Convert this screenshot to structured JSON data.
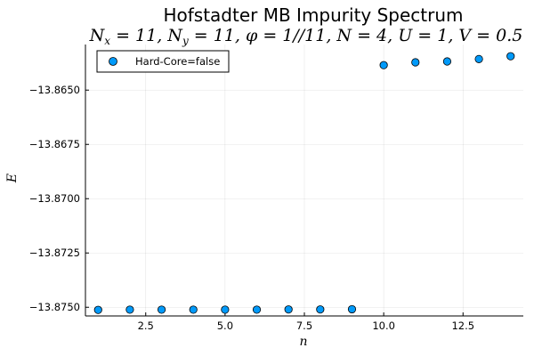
{
  "chart_data": {
    "type": "scatter",
    "title": "Hofstadter MB Impurity Spectrum",
    "subtitle": "N_x = 11, N_y = 11, φ = 1//11, N = 4, U = 1, V = 0.5",
    "xlabel": "n",
    "ylabel": "E",
    "xlim": [
      0.6,
      14.4
    ],
    "ylim": [
      -13.8754,
      -13.8629
    ],
    "xticks": [
      2.5,
      5.0,
      7.5,
      10.0,
      12.5
    ],
    "xtick_labels": [
      "2.5",
      "5.0",
      "7.5",
      "10.0",
      "12.5"
    ],
    "yticks": [
      -13.865,
      -13.8675,
      -13.87,
      -13.8725,
      -13.875
    ],
    "ytick_labels": [
      "−13.8650",
      "−13.8675",
      "−13.8700",
      "−13.8725",
      "−13.8750"
    ],
    "grid": true,
    "legend_position": "top-left",
    "series": [
      {
        "name": "Hard-Core=false",
        "color": "#009AFA",
        "x": [
          1,
          2,
          3,
          4,
          5,
          6,
          7,
          8,
          9,
          10,
          11,
          12,
          13,
          14
        ],
        "y": [
          -13.87512,
          -13.87511,
          -13.87511,
          -13.87511,
          -13.87511,
          -13.87511,
          -13.8751,
          -13.8751,
          -13.87509,
          -13.86385,
          -13.86372,
          -13.86368,
          -13.86357,
          -13.86344
        ]
      }
    ]
  }
}
